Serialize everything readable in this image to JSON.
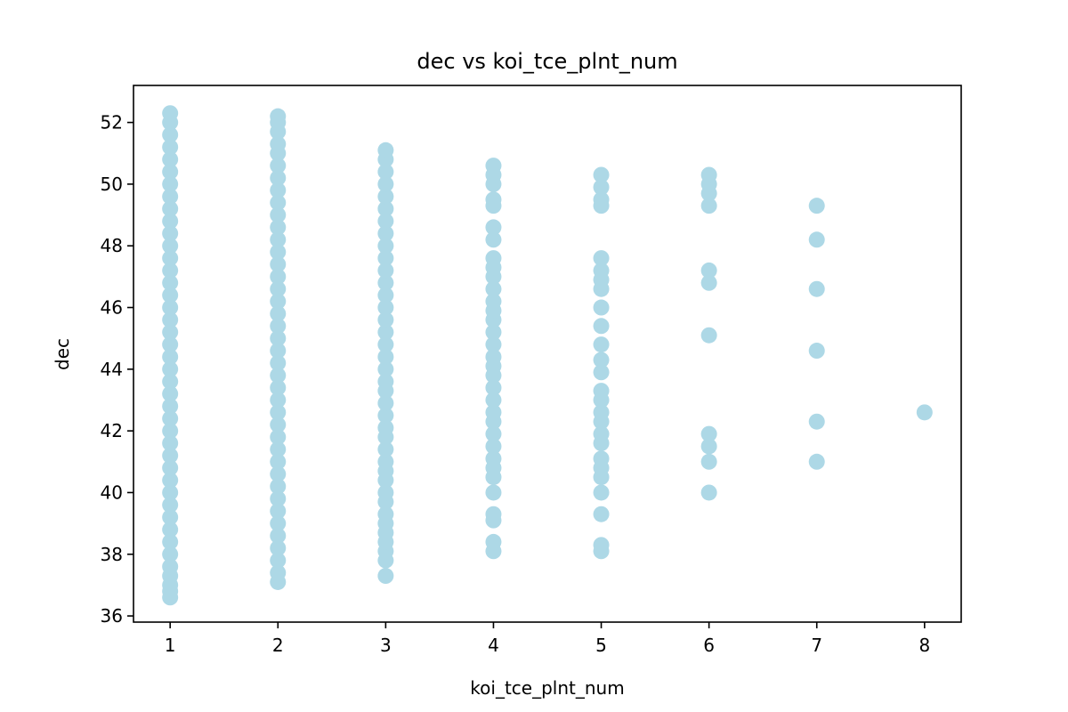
{
  "chart_data": {
    "type": "scatter",
    "title": "dec vs koi_tce_plnt_num",
    "xlabel": "koi_tce_plnt_num",
    "ylabel": "dec",
    "xlim": [
      0.66,
      8.34
    ],
    "ylim": [
      35.8,
      53.2
    ],
    "x_ticks": [
      1,
      2,
      3,
      4,
      5,
      6,
      7,
      8
    ],
    "y_ticks": [
      36,
      38,
      40,
      42,
      44,
      46,
      48,
      50,
      52
    ],
    "grid": false,
    "legend": "none",
    "marker_color": "#add8e6",
    "series": [
      {
        "points": [
          {
            "x": 1,
            "y": 36.6
          },
          {
            "x": 1,
            "y": 36.8
          },
          {
            "x": 1,
            "y": 37.0
          },
          {
            "x": 1,
            "y": 37.3
          },
          {
            "x": 1,
            "y": 37.6
          },
          {
            "x": 1,
            "y": 38.0
          },
          {
            "x": 1,
            "y": 38.4
          },
          {
            "x": 1,
            "y": 38.8
          },
          {
            "x": 1,
            "y": 39.2
          },
          {
            "x": 1,
            "y": 39.6
          },
          {
            "x": 1,
            "y": 40.0
          },
          {
            "x": 1,
            "y": 40.4
          },
          {
            "x": 1,
            "y": 40.8
          },
          {
            "x": 1,
            "y": 41.2
          },
          {
            "x": 1,
            "y": 41.6
          },
          {
            "x": 1,
            "y": 42.0
          },
          {
            "x": 1,
            "y": 42.4
          },
          {
            "x": 1,
            "y": 42.8
          },
          {
            "x": 1,
            "y": 43.2
          },
          {
            "x": 1,
            "y": 43.6
          },
          {
            "x": 1,
            "y": 44.0
          },
          {
            "x": 1,
            "y": 44.4
          },
          {
            "x": 1,
            "y": 44.8
          },
          {
            "x": 1,
            "y": 45.2
          },
          {
            "x": 1,
            "y": 45.6
          },
          {
            "x": 1,
            "y": 46.0
          },
          {
            "x": 1,
            "y": 46.4
          },
          {
            "x": 1,
            "y": 46.8
          },
          {
            "x": 1,
            "y": 47.2
          },
          {
            "x": 1,
            "y": 47.6
          },
          {
            "x": 1,
            "y": 48.0
          },
          {
            "x": 1,
            "y": 48.4
          },
          {
            "x": 1,
            "y": 48.8
          },
          {
            "x": 1,
            "y": 49.2
          },
          {
            "x": 1,
            "y": 49.6
          },
          {
            "x": 1,
            "y": 50.0
          },
          {
            "x": 1,
            "y": 50.4
          },
          {
            "x": 1,
            "y": 50.8
          },
          {
            "x": 1,
            "y": 51.2
          },
          {
            "x": 1,
            "y": 51.6
          },
          {
            "x": 1,
            "y": 52.0
          },
          {
            "x": 1,
            "y": 52.3
          },
          {
            "x": 2,
            "y": 37.1
          },
          {
            "x": 2,
            "y": 37.4
          },
          {
            "x": 2,
            "y": 37.8
          },
          {
            "x": 2,
            "y": 38.2
          },
          {
            "x": 2,
            "y": 38.6
          },
          {
            "x": 2,
            "y": 39.0
          },
          {
            "x": 2,
            "y": 39.4
          },
          {
            "x": 2,
            "y": 39.8
          },
          {
            "x": 2,
            "y": 40.2
          },
          {
            "x": 2,
            "y": 40.6
          },
          {
            "x": 2,
            "y": 41.0
          },
          {
            "x": 2,
            "y": 41.4
          },
          {
            "x": 2,
            "y": 41.8
          },
          {
            "x": 2,
            "y": 42.2
          },
          {
            "x": 2,
            "y": 42.6
          },
          {
            "x": 2,
            "y": 43.0
          },
          {
            "x": 2,
            "y": 43.4
          },
          {
            "x": 2,
            "y": 43.8
          },
          {
            "x": 2,
            "y": 44.2
          },
          {
            "x": 2,
            "y": 44.6
          },
          {
            "x": 2,
            "y": 45.0
          },
          {
            "x": 2,
            "y": 45.4
          },
          {
            "x": 2,
            "y": 45.8
          },
          {
            "x": 2,
            "y": 46.2
          },
          {
            "x": 2,
            "y": 46.6
          },
          {
            "x": 2,
            "y": 47.0
          },
          {
            "x": 2,
            "y": 47.4
          },
          {
            "x": 2,
            "y": 47.8
          },
          {
            "x": 2,
            "y": 48.2
          },
          {
            "x": 2,
            "y": 48.6
          },
          {
            "x": 2,
            "y": 49.0
          },
          {
            "x": 2,
            "y": 49.4
          },
          {
            "x": 2,
            "y": 49.8
          },
          {
            "x": 2,
            "y": 50.2
          },
          {
            "x": 2,
            "y": 50.6
          },
          {
            "x": 2,
            "y": 51.0
          },
          {
            "x": 2,
            "y": 51.3
          },
          {
            "x": 2,
            "y": 51.7
          },
          {
            "x": 2,
            "y": 52.0
          },
          {
            "x": 2,
            "y": 52.2
          },
          {
            "x": 3,
            "y": 37.3
          },
          {
            "x": 3,
            "y": 37.8
          },
          {
            "x": 3,
            "y": 38.1
          },
          {
            "x": 3,
            "y": 38.4
          },
          {
            "x": 3,
            "y": 38.7
          },
          {
            "x": 3,
            "y": 39.0
          },
          {
            "x": 3,
            "y": 39.3
          },
          {
            "x": 3,
            "y": 39.7
          },
          {
            "x": 3,
            "y": 40.0
          },
          {
            "x": 3,
            "y": 40.4
          },
          {
            "x": 3,
            "y": 40.7
          },
          {
            "x": 3,
            "y": 41.0
          },
          {
            "x": 3,
            "y": 41.4
          },
          {
            "x": 3,
            "y": 41.8
          },
          {
            "x": 3,
            "y": 42.1
          },
          {
            "x": 3,
            "y": 42.5
          },
          {
            "x": 3,
            "y": 42.9
          },
          {
            "x": 3,
            "y": 43.3
          },
          {
            "x": 3,
            "y": 43.6
          },
          {
            "x": 3,
            "y": 44.0
          },
          {
            "x": 3,
            "y": 44.4
          },
          {
            "x": 3,
            "y": 44.8
          },
          {
            "x": 3,
            "y": 45.2
          },
          {
            "x": 3,
            "y": 45.6
          },
          {
            "x": 3,
            "y": 46.0
          },
          {
            "x": 3,
            "y": 46.4
          },
          {
            "x": 3,
            "y": 46.8
          },
          {
            "x": 3,
            "y": 47.2
          },
          {
            "x": 3,
            "y": 47.6
          },
          {
            "x": 3,
            "y": 48.0
          },
          {
            "x": 3,
            "y": 48.4
          },
          {
            "x": 3,
            "y": 48.8
          },
          {
            "x": 3,
            "y": 49.2
          },
          {
            "x": 3,
            "y": 49.6
          },
          {
            "x": 3,
            "y": 50.0
          },
          {
            "x": 3,
            "y": 50.4
          },
          {
            "x": 3,
            "y": 50.8
          },
          {
            "x": 3,
            "y": 51.1
          },
          {
            "x": 4,
            "y": 38.1
          },
          {
            "x": 4,
            "y": 38.4
          },
          {
            "x": 4,
            "y": 39.1
          },
          {
            "x": 4,
            "y": 39.3
          },
          {
            "x": 4,
            "y": 40.0
          },
          {
            "x": 4,
            "y": 40.5
          },
          {
            "x": 4,
            "y": 40.8
          },
          {
            "x": 4,
            "y": 41.1
          },
          {
            "x": 4,
            "y": 41.5
          },
          {
            "x": 4,
            "y": 41.9
          },
          {
            "x": 4,
            "y": 42.3
          },
          {
            "x": 4,
            "y": 42.6
          },
          {
            "x": 4,
            "y": 43.0
          },
          {
            "x": 4,
            "y": 43.4
          },
          {
            "x": 4,
            "y": 43.8
          },
          {
            "x": 4,
            "y": 44.1
          },
          {
            "x": 4,
            "y": 44.4
          },
          {
            "x": 4,
            "y": 44.8
          },
          {
            "x": 4,
            "y": 45.2
          },
          {
            "x": 4,
            "y": 45.6
          },
          {
            "x": 4,
            "y": 45.9
          },
          {
            "x": 4,
            "y": 46.2
          },
          {
            "x": 4,
            "y": 46.6
          },
          {
            "x": 4,
            "y": 47.0
          },
          {
            "x": 4,
            "y": 47.3
          },
          {
            "x": 4,
            "y": 47.6
          },
          {
            "x": 4,
            "y": 48.2
          },
          {
            "x": 4,
            "y": 48.6
          },
          {
            "x": 4,
            "y": 49.3
          },
          {
            "x": 4,
            "y": 49.5
          },
          {
            "x": 4,
            "y": 50.0
          },
          {
            "x": 4,
            "y": 50.3
          },
          {
            "x": 4,
            "y": 50.6
          },
          {
            "x": 5,
            "y": 38.1
          },
          {
            "x": 5,
            "y": 38.3
          },
          {
            "x": 5,
            "y": 39.3
          },
          {
            "x": 5,
            "y": 40.0
          },
          {
            "x": 5,
            "y": 40.5
          },
          {
            "x": 5,
            "y": 40.8
          },
          {
            "x": 5,
            "y": 41.1
          },
          {
            "x": 5,
            "y": 41.6
          },
          {
            "x": 5,
            "y": 41.9
          },
          {
            "x": 5,
            "y": 42.3
          },
          {
            "x": 5,
            "y": 42.6
          },
          {
            "x": 5,
            "y": 43.0
          },
          {
            "x": 5,
            "y": 43.3
          },
          {
            "x": 5,
            "y": 43.9
          },
          {
            "x": 5,
            "y": 44.3
          },
          {
            "x": 5,
            "y": 44.8
          },
          {
            "x": 5,
            "y": 45.4
          },
          {
            "x": 5,
            "y": 46.0
          },
          {
            "x": 5,
            "y": 46.6
          },
          {
            "x": 5,
            "y": 46.9
          },
          {
            "x": 5,
            "y": 47.2
          },
          {
            "x": 5,
            "y": 47.6
          },
          {
            "x": 5,
            "y": 49.3
          },
          {
            "x": 5,
            "y": 49.5
          },
          {
            "x": 5,
            "y": 49.9
          },
          {
            "x": 5,
            "y": 50.3
          },
          {
            "x": 6,
            "y": 40.0
          },
          {
            "x": 6,
            "y": 41.0
          },
          {
            "x": 6,
            "y": 41.5
          },
          {
            "x": 6,
            "y": 41.9
          },
          {
            "x": 6,
            "y": 45.1
          },
          {
            "x": 6,
            "y": 46.8
          },
          {
            "x": 6,
            "y": 47.2
          },
          {
            "x": 6,
            "y": 49.3
          },
          {
            "x": 6,
            "y": 49.7
          },
          {
            "x": 6,
            "y": 50.0
          },
          {
            "x": 6,
            "y": 50.3
          },
          {
            "x": 7,
            "y": 41.0
          },
          {
            "x": 7,
            "y": 42.3
          },
          {
            "x": 7,
            "y": 44.6
          },
          {
            "x": 7,
            "y": 46.6
          },
          {
            "x": 7,
            "y": 48.2
          },
          {
            "x": 7,
            "y": 49.3
          },
          {
            "x": 8,
            "y": 42.6
          }
        ]
      }
    ]
  }
}
